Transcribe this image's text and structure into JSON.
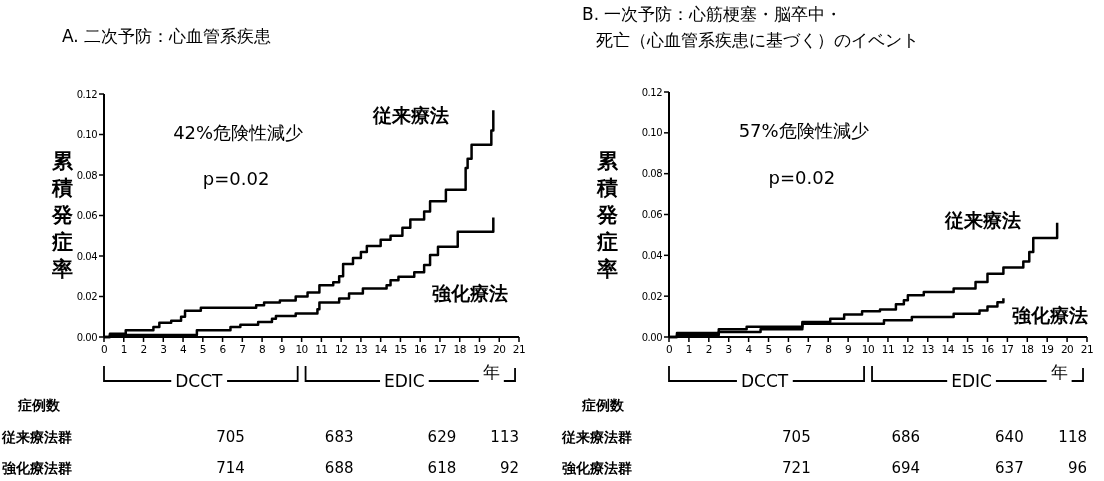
{
  "chart_data": [
    {
      "type": "step",
      "title": "A. 二次予防：心血管系疾患",
      "ylabel": "累積発症率",
      "xlim": [
        0,
        21
      ],
      "xticks": [
        0,
        1,
        2,
        3,
        4,
        5,
        6,
        7,
        8,
        9,
        10,
        11,
        12,
        13,
        14,
        15,
        16,
        17,
        18,
        19,
        20,
        21
      ],
      "ylim": [
        0,
        0.12
      ],
      "yticks": [
        {
          "value": 0,
          "label": "0.00"
        },
        {
          "value": 0.02,
          "label": "0.02"
        },
        {
          "value": 0.04,
          "label": "0.04"
        },
        {
          "value": 0.06,
          "label": "0.06"
        },
        {
          "value": 0.08,
          "label": "0.08"
        },
        {
          "value": 0.1,
          "label": "0.10"
        },
        {
          "value": 0.12,
          "label": "0.12"
        }
      ],
      "series": [
        {
          "name": "従来療法",
          "color": "#000000",
          "x": [
            0,
            0.3,
            1.1,
            2.5,
            2.8,
            3.4,
            3.9,
            4.1,
            4.9,
            7.7,
            8.1,
            8.9,
            9.7,
            10.3,
            10.9,
            11.6,
            11.9,
            12.1,
            12.6,
            13.0,
            13.3,
            14.0,
            14.5,
            15.1,
            15.5,
            16.2,
            16.5,
            17.3,
            18.3,
            18.4,
            18.6,
            19.6,
            19.7
          ],
          "values": [
            0,
            0.0016,
            0.0033,
            0.005,
            0.007,
            0.008,
            0.01,
            0.013,
            0.0145,
            0.0157,
            0.017,
            0.018,
            0.02,
            0.022,
            0.0256,
            0.027,
            0.03,
            0.036,
            0.039,
            0.042,
            0.045,
            0.048,
            0.05,
            0.054,
            0.058,
            0.062,
            0.067,
            0.0727,
            0.0835,
            0.088,
            0.095,
            0.102,
            0.112
          ]
        },
        {
          "name": "強化療法",
          "color": "#000000",
          "x": [
            0,
            0.3,
            4.7,
            6.4,
            6.9,
            7.8,
            8.5,
            8.7,
            9.7,
            10.8,
            10.9,
            11.9,
            12.4,
            13.1,
            14.3,
            14.5,
            14.9,
            15.7,
            16.2,
            16.5,
            16.9,
            17.9,
            19.7
          ],
          "values": [
            0,
            0.001,
            0.0033,
            0.005,
            0.006,
            0.0074,
            0.009,
            0.0104,
            0.0116,
            0.0137,
            0.017,
            0.019,
            0.0215,
            0.024,
            0.0256,
            0.028,
            0.0298,
            0.032,
            0.0355,
            0.0405,
            0.0446,
            0.052,
            0.059
          ]
        }
      ],
      "annotations": [
        "42%危険性減少",
        "p=0.02",
        "DCCT",
        "EDIC",
        "年",
        "症例数",
        "従来療法群",
        "705",
        "683",
        "629",
        "113",
        "強化療法群",
        "714",
        "688",
        "618",
        "92"
      ]
    },
    {
      "type": "step",
      "title": "B. 一次予防：心筋梗塞・脳卒中・",
      "subtitle": "死亡（心血管系疾患に基づく）のイベント",
      "ylabel": "累積発症率",
      "xlim": [
        0,
        21
      ],
      "xticks": [
        0,
        1,
        2,
        3,
        4,
        5,
        6,
        7,
        8,
        9,
        10,
        11,
        12,
        13,
        14,
        15,
        16,
        17,
        18,
        19,
        20,
        21
      ],
      "ylim": [
        0,
        0.12
      ],
      "yticks": [
        {
          "value": 0,
          "label": "0.00"
        },
        {
          "value": 0.02,
          "label": "0.02"
        },
        {
          "value": 0.04,
          "label": "0.04"
        },
        {
          "value": 0.06,
          "label": "0.06"
        },
        {
          "value": 0.08,
          "label": "0.08"
        },
        {
          "value": 0.1,
          "label": "0.10"
        },
        {
          "value": 0.12,
          "label": "0.12"
        }
      ],
      "series": [
        {
          "name": "従来療法",
          "color": "#000000",
          "x": [
            0,
            0.4,
            2.5,
            3.9,
            6.7,
            8.1,
            8.8,
            9.7,
            10.6,
            11.4,
            11.8,
            12.0,
            12.8,
            14.3,
            15.4,
            16.0,
            16.8,
            17.8,
            18.1,
            18.3,
            19.5
          ],
          "values": [
            0,
            0.002,
            0.0038,
            0.005,
            0.0073,
            0.009,
            0.011,
            0.0126,
            0.0135,
            0.016,
            0.018,
            0.0204,
            0.022,
            0.0237,
            0.027,
            0.031,
            0.034,
            0.037,
            0.0416,
            0.0485,
            0.056
          ]
        },
        {
          "name": "強化療法",
          "color": "#000000",
          "x": [
            0,
            0.4,
            2.5,
            4.6,
            6.7,
            10.8,
            12.2,
            14.3,
            15.6,
            16.0,
            16.5,
            16.8
          ],
          "values": [
            0,
            0.001,
            0.0025,
            0.0038,
            0.0065,
            0.0082,
            0.0098,
            0.0114,
            0.013,
            0.015,
            0.017,
            0.019
          ]
        }
      ],
      "annotations": [
        "57%危険性減少",
        "p=0.02",
        "DCCT",
        "EDIC",
        "年",
        "症例数",
        "従来療法群",
        "705",
        "686",
        "640",
        "118",
        "強化療法群",
        "721",
        "694",
        "637",
        "96"
      ]
    }
  ]
}
